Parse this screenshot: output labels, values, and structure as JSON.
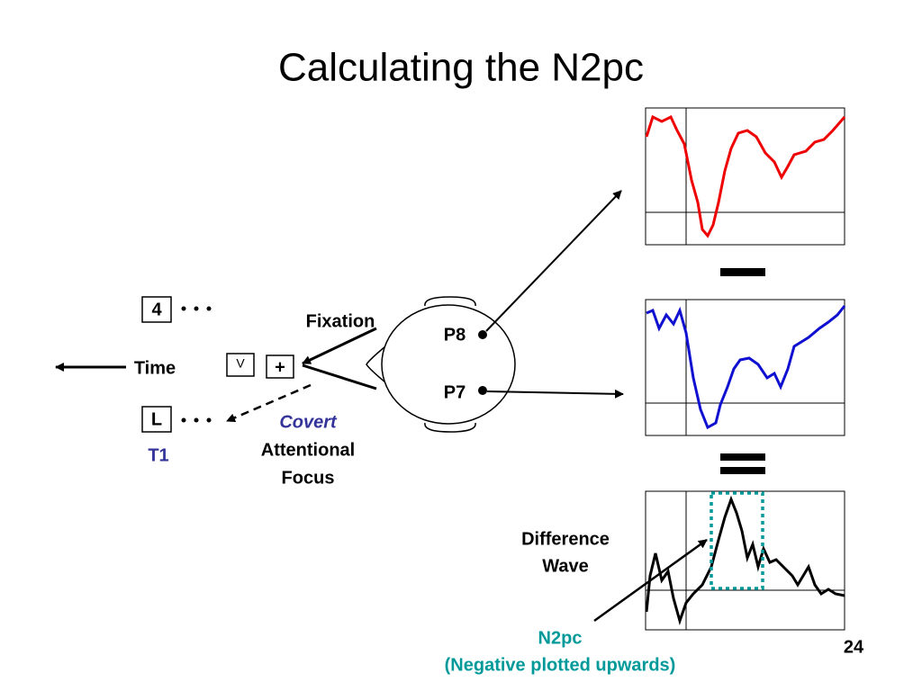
{
  "title": "Calculating the N2pc",
  "stimuli": {
    "box_top": "4",
    "box_bottom": "L",
    "target_label": "T1",
    "time": "Time",
    "box_v": "V",
    "fixation_cross": "+"
  },
  "labels": {
    "fixation": "Fixation",
    "covert": "Covert",
    "attentional": "Attentional",
    "focus": "Focus"
  },
  "electrodes": {
    "right": "P8",
    "left": "P7"
  },
  "difference": {
    "line1": "Difference",
    "line2": "Wave"
  },
  "n2pc": {
    "name": "N2pc",
    "note": "(Negative plotted upwards)"
  },
  "page_number": "24"
}
